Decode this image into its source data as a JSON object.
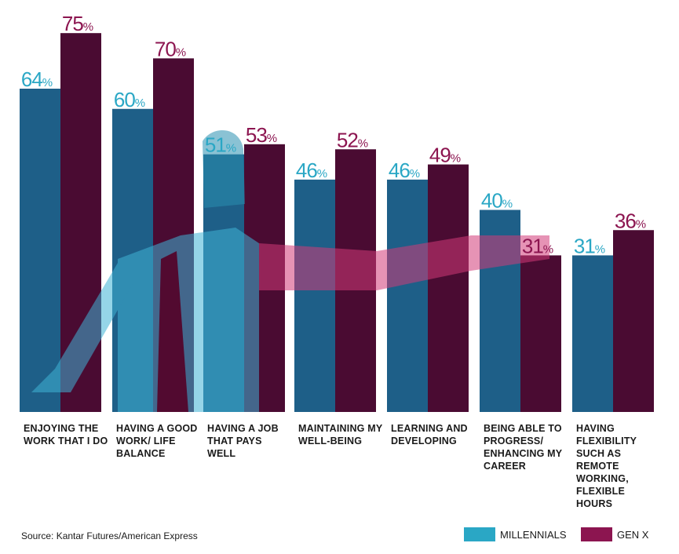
{
  "chart_data": {
    "type": "bar",
    "categories": [
      "ENJOYING THE WORK THAT I DO",
      "HAVING A GOOD WORK/ LIFE BALANCE",
      "HAVING A JOB THAT PAYS WELL",
      "MAINTAINING MY WELL-BEING",
      "LEARNING AND DEVELOPING",
      "BEING ABLE TO PROGRESS/ ENHANCING MY CAREER",
      "HAVING FLEXIBILITY SUCH AS REMOTE WORKING, FLEXIBLE HOURS"
    ],
    "series": [
      {
        "name": "MILLENNIALS",
        "color": "#2aa7c5",
        "values": [
          64,
          60,
          51,
          46,
          46,
          40,
          31
        ]
      },
      {
        "name": "GEN X",
        "color": "#8c1550",
        "values": [
          75,
          70,
          53,
          52,
          49,
          31,
          36
        ]
      }
    ],
    "value_suffix": "%",
    "ylim": [
      0,
      80
    ],
    "grid": false,
    "legend_position": "bottom-right"
  },
  "source": "Source: Kantar Futures/American Express",
  "legend": [
    {
      "label": "MILLENNIALS",
      "color": "#2aa7c5"
    },
    {
      "label": "GEN X",
      "color": "#8c1550"
    }
  ]
}
